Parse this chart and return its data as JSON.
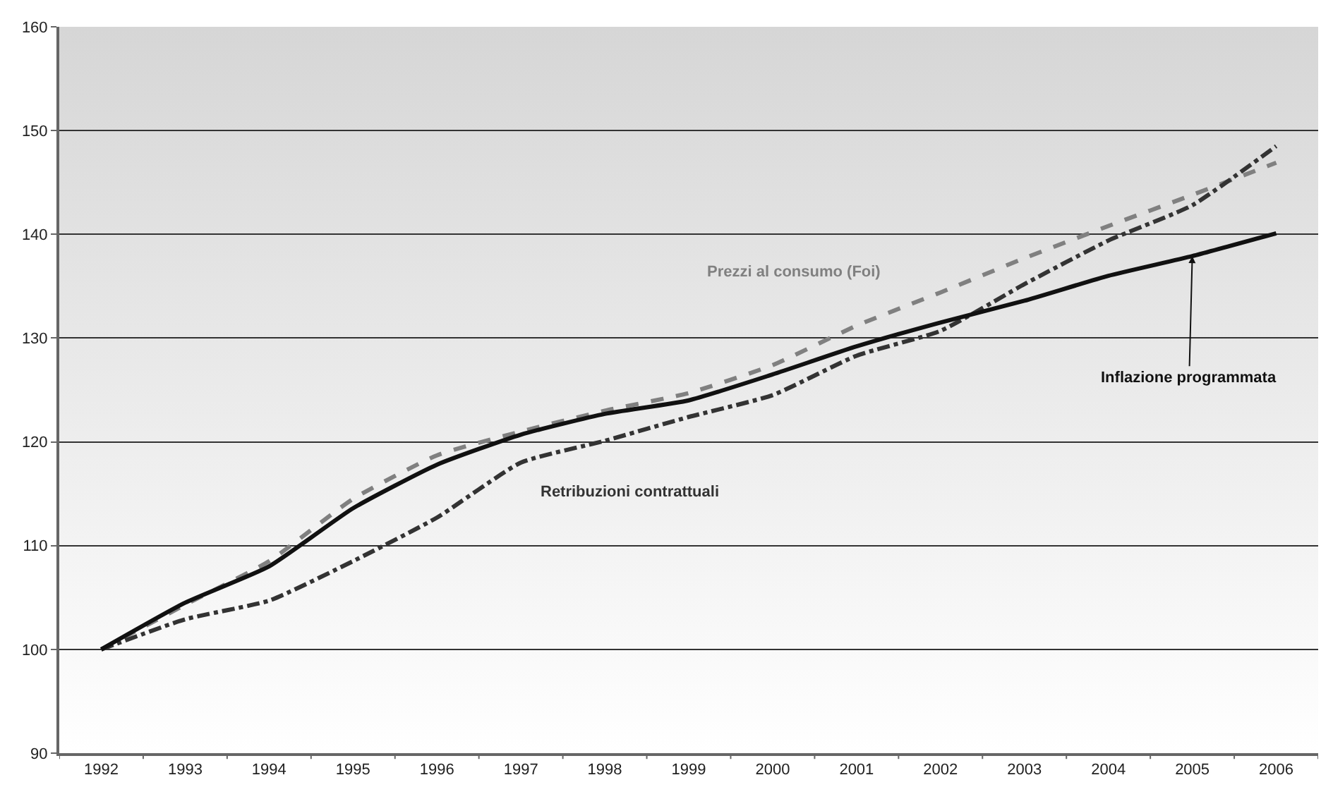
{
  "chart_data": {
    "type": "line",
    "categories": [
      "1992",
      "1993",
      "1994",
      "1995",
      "1996",
      "1997",
      "1998",
      "1999",
      "2000",
      "2001",
      "2002",
      "2003",
      "2004",
      "2005",
      "2006"
    ],
    "series": [
      {
        "name": "Prezzi al consumo (Foi)",
        "color": "#808080",
        "line_style": "dashed",
        "values": [
          100,
          104.3,
          108.5,
          114.5,
          118.7,
          121,
          123,
          124.7,
          127.4,
          131.2,
          134.4,
          137.7,
          140.8,
          143.8,
          146.9
        ]
      },
      {
        "name": "Retribuzioni contrattuali",
        "color": "#333333",
        "line_style": "dashdot",
        "values": [
          100,
          102.9,
          104.7,
          108.5,
          112.7,
          118,
          120.1,
          122.4,
          124.5,
          128.3,
          130.7,
          135.2,
          139.4,
          142.8,
          148.5
        ]
      },
      {
        "name": "Inflazione programmata",
        "color": "#111111",
        "line_style": "solid",
        "values": [
          100,
          104.5,
          108,
          113.6,
          117.8,
          120.7,
          122.7,
          124,
          126.5,
          129.2,
          131.5,
          133.6,
          136,
          137.9,
          140.1
        ]
      }
    ],
    "ylim": [
      90,
      160
    ],
    "yticks": [
      90,
      100,
      110,
      120,
      130,
      140,
      150,
      160
    ],
    "grid": "y",
    "legend": false,
    "marker": "none"
  }
}
